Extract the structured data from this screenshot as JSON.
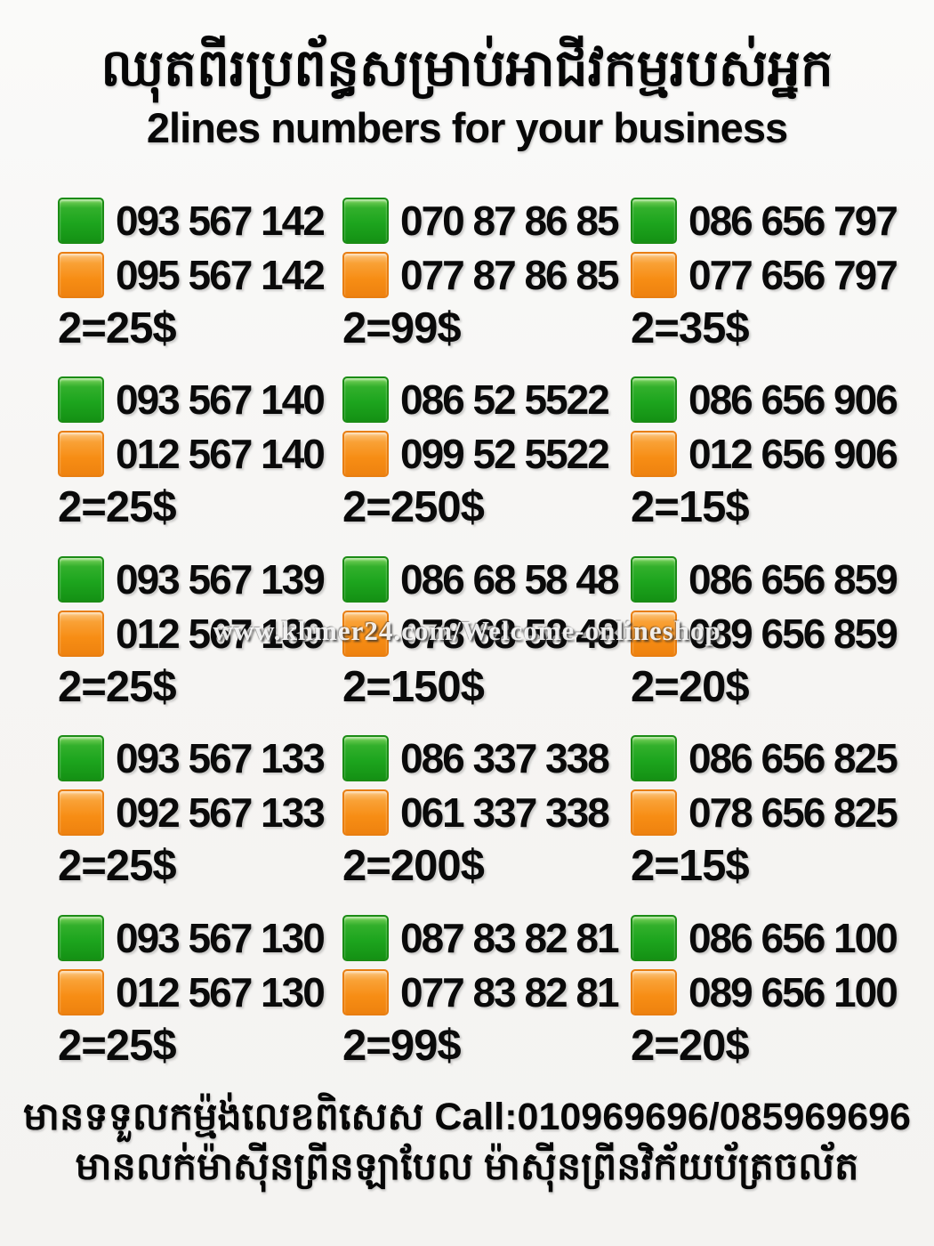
{
  "header": {
    "title_khmer": "ឈុតពីរប្រព័ន្ធសម្រាប់អាជីវកម្មរបស់អ្នក",
    "subtitle_english": "2lines numbers for your business"
  },
  "colors": {
    "line1_swatch_green": "#1da51e",
    "line2_swatch_orange": "#f78d14",
    "text": "#0a0a0a",
    "background": "#f6f5f3",
    "watermark_text": "#ffffff"
  },
  "offers": [
    {
      "line1": "093 567 142",
      "line2": "095 567 142",
      "price": "2=25$"
    },
    {
      "line1": "070 87 86 85",
      "line2": "077 87 86 85",
      "price": "2=99$"
    },
    {
      "line1": "086 656 797",
      "line2": "077 656 797",
      "price": "2=35$"
    },
    {
      "line1": "093 567 140",
      "line2": "012 567 140",
      "price": "2=25$"
    },
    {
      "line1": "086 52 5522",
      "line2": "099 52 5522",
      "price": "2=250$"
    },
    {
      "line1": "086 656 906",
      "line2": "012 656 906",
      "price": "2=15$"
    },
    {
      "line1": "093 567 139",
      "line2": "012 567 139",
      "price": "2=25$"
    },
    {
      "line1": "086 68 58 48",
      "line2": "078 68 58 48",
      "price": "2=150$"
    },
    {
      "line1": "086 656 859",
      "line2": "089 656 859",
      "price": "2=20$"
    },
    {
      "line1": "093 567 133",
      "line2": "092 567 133",
      "price": "2=25$"
    },
    {
      "line1": "086 337 338",
      "line2": "061 337 338",
      "price": "2=200$"
    },
    {
      "line1": "086 656 825",
      "line2": "078 656 825",
      "price": "2=15$"
    },
    {
      "line1": "093 567 130",
      "line2": "012 567 130",
      "price": "2=25$"
    },
    {
      "line1": "087 83 82 81",
      "line2": "077 83 82 81",
      "price": "2=99$"
    },
    {
      "line1": "086 656 100",
      "line2": "089 656 100",
      "price": "2=20$"
    }
  ],
  "watermark": "www.khmer24.com/Welcome-onlineshop",
  "footer": {
    "line1": "មានទទួលកម្ម៉ង់លេខពិសេស Call:010969696/085969696",
    "line2": "មានលក់ម៉ាស៊ីនព្រីនឡាបែល ម៉ាស៊ីនព្រីនវិក័យប័ត្រចល័ត"
  }
}
